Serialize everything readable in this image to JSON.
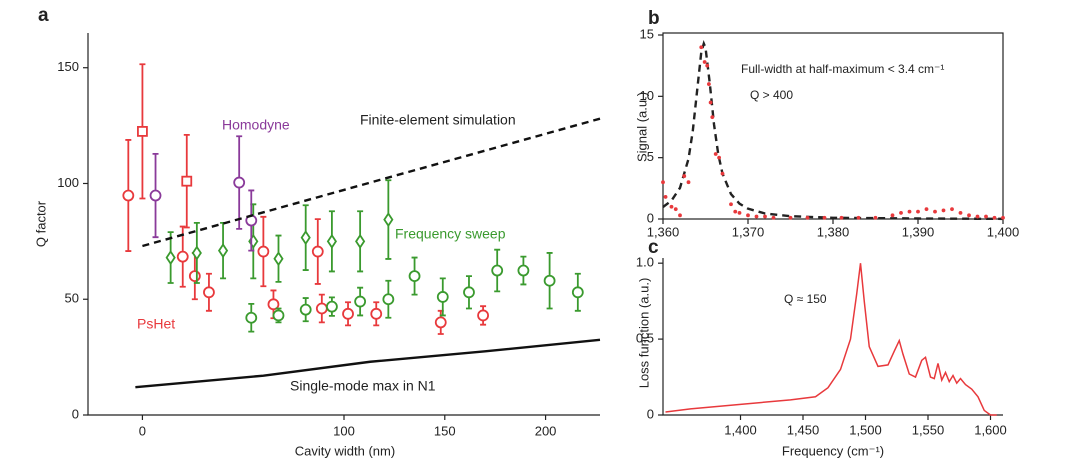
{
  "chart_data": [
    {
      "type": "scatter",
      "panel": "a",
      "ylabel": "Q factor",
      "xlabel": "Cavity width (nm)",
      "xlim": [
        -27,
        227
      ],
      "ylim": [
        0,
        165
      ],
      "xticks": [
        0,
        100,
        150,
        200
      ],
      "yticks": [
        0,
        50,
        100,
        150
      ],
      "series": [
        {
          "name": "PsHet",
          "color": "#e8393c",
          "x": [
            -7,
            0,
            20,
            22,
            26,
            33,
            60,
            65,
            87,
            89,
            102,
            116,
            148,
            169
          ],
          "values": [
            94.8,
            122.5,
            68.4,
            101,
            60,
            53,
            70.6,
            47.8,
            70.6,
            46,
            43.7,
            43.7,
            40,
            43
          ],
          "errors": [
            24,
            29,
            13,
            20,
            10,
            8,
            15,
            6,
            14,
            6,
            5,
            5,
            5,
            4
          ],
          "markers": [
            "circle",
            "square",
            "circle",
            "square",
            "circle",
            "circle",
            "circle",
            "circle",
            "circle",
            "circle",
            "circle",
            "circle",
            "circle",
            "circle"
          ]
        },
        {
          "name": "Frequency sweep",
          "color": "#3a9a2e",
          "x": [
            14,
            27,
            40,
            55,
            67.5,
            81,
            94,
            108,
            122,
            54,
            67.5,
            81,
            94,
            108,
            122,
            135,
            149,
            162,
            176,
            189,
            202,
            216
          ],
          "values": [
            68,
            70,
            71,
            75,
            67.5,
            76.6,
            75,
            75,
            84.4,
            42,
            43,
            45.5,
            46.8,
            49,
            50,
            60,
            51,
            53,
            62.4,
            62.4,
            58,
            53
          ],
          "errors": [
            11,
            13,
            12,
            16,
            10,
            14,
            13,
            13,
            17,
            6,
            3,
            5,
            4,
            6,
            8,
            8,
            8,
            7,
            9,
            6,
            12,
            8
          ],
          "markers": [
            "diamond",
            "diamond",
            "diamond",
            "diamond",
            "diamond",
            "diamond",
            "diamond",
            "diamond",
            "diamond",
            "circle",
            "circle",
            "circle",
            "circle",
            "circle",
            "circle",
            "circle",
            "circle",
            "circle",
            "circle",
            "circle",
            "circle",
            "circle"
          ]
        },
        {
          "name": "Homodyne",
          "color": "#8a3a9a",
          "x": [
            6.5,
            48,
            54
          ],
          "values": [
            94.8,
            100.4,
            84
          ],
          "errors": [
            18,
            20,
            13
          ],
          "markers": [
            "circle",
            "circle",
            "circle"
          ]
        },
        {
          "name": "Finite-element simulation",
          "kind": "line",
          "dash": true,
          "color": "#111",
          "x": [
            0,
            227
          ],
          "values": [
            73,
            128
          ]
        },
        {
          "name": "Single-mode max in N1",
          "kind": "line",
          "color": "#111",
          "x": [
            -3.5,
            60,
            113,
            170,
            227
          ],
          "values": [
            12,
            17,
            23,
            27.5,
            32.5
          ]
        }
      ]
    },
    {
      "type": "line",
      "panel": "b",
      "ylabel": "Signal (a.u.)",
      "xlim": [
        1360,
        1400
      ],
      "ylim": [
        0,
        15
      ],
      "xticks": [
        {
          "value": 1360,
          "label": "1,360"
        },
        {
          "value": 1370,
          "label": "1,370"
        },
        {
          "value": 1380,
          "label": "1,380"
        },
        {
          "value": 1390,
          "label": "1,390"
        },
        {
          "value": 1400,
          "label": "1,400"
        }
      ],
      "yticks": [
        0,
        5,
        10,
        15
      ],
      "annotations": [
        "Full-width at half-maximum < 3.4 cm⁻¹",
        "Q > 400"
      ],
      "series": [
        {
          "kind": "line",
          "dash": true,
          "color": "#222",
          "x": [
            1360,
            1361,
            1362,
            1363,
            1363.5,
            1364,
            1364.5,
            1364.8,
            1365,
            1365.5,
            1366,
            1366.5,
            1367,
            1368,
            1369,
            1370,
            1372,
            1375,
            1380,
            1390,
            1400
          ],
          "values": [
            0.98,
            1.5,
            2.54,
            4.9,
            7.15,
            10.37,
            13.58,
            14.3,
            13.97,
            11.09,
            7.72,
            5.28,
            3.7,
            2.03,
            1.25,
            0.84,
            0.45,
            0.23,
            0.1,
            0.04,
            0.01
          ]
        },
        {
          "kind": "points",
          "color": "#e8393c",
          "x": [
            1360,
            1360.3,
            1361,
            1361.5,
            1362,
            1362.5,
            1363,
            1364.5,
            1364.9,
            1365.2,
            1365.4,
            1365.6,
            1365.8,
            1366.2,
            1366.6,
            1367,
            1368,
            1368.5,
            1369,
            1370,
            1371,
            1372,
            1373,
            1375,
            1377,
            1379,
            1381,
            1383,
            1385,
            1387,
            1388,
            1389,
            1390,
            1391,
            1392,
            1393,
            1394,
            1395,
            1396,
            1397,
            1398,
            1399,
            1400
          ],
          "values": [
            3,
            1.8,
            1,
            0.8,
            0.3,
            3.5,
            3,
            14,
            12.8,
            12.5,
            11,
            9.5,
            8.3,
            5.3,
            5,
            3.7,
            1.2,
            0.6,
            0.5,
            0.3,
            0.2,
            0.2,
            0.1,
            0.1,
            0.1,
            0.1,
            0.1,
            0.1,
            0.1,
            0.3,
            0.5,
            0.6,
            0.6,
            0.8,
            0.6,
            0.7,
            0.8,
            0.5,
            0.3,
            0.2,
            0.2,
            0.1,
            0.1
          ]
        }
      ]
    },
    {
      "type": "line",
      "panel": "c",
      "ylabel": "Loss function (a.u.)",
      "xlabel": "Frequency (cm⁻¹)",
      "xlim": [
        1338,
        1610
      ],
      "ylim": [
        0,
        1.1
      ],
      "xticks": [
        {
          "value": 1400,
          "label": "1,400"
        },
        {
          "value": 1450,
          "label": "1,450"
        },
        {
          "value": 1500,
          "label": "1,500"
        },
        {
          "value": 1550,
          "label": "1,550"
        },
        {
          "value": 1600,
          "label": "1,600"
        }
      ],
      "yticks": [
        0,
        0.5,
        {
          "value": 1,
          "label": "1.0"
        }
      ],
      "annotations": [
        "Q ≈ 150"
      ],
      "series": [
        {
          "kind": "line",
          "color": "#e8393c",
          "x": [
            1340,
            1360,
            1400,
            1440,
            1460,
            1470,
            1480,
            1488,
            1493,
            1496,
            1499,
            1503,
            1510,
            1518,
            1523,
            1527,
            1530,
            1535,
            1540,
            1545,
            1548,
            1552,
            1555,
            1558,
            1561,
            1564,
            1567,
            1570,
            1573,
            1576,
            1580,
            1585,
            1590,
            1595,
            1600,
            1605
          ],
          "values": [
            0.02,
            0.04,
            0.07,
            0.1,
            0.12,
            0.18,
            0.3,
            0.5,
            0.8,
            1,
            0.75,
            0.45,
            0.32,
            0.33,
            0.42,
            0.49,
            0.4,
            0.27,
            0.25,
            0.36,
            0.38,
            0.25,
            0.24,
            0.34,
            0.23,
            0.28,
            0.22,
            0.26,
            0.21,
            0.24,
            0.2,
            0.17,
            0.12,
            0.03,
            0,
            0
          ]
        }
      ]
    }
  ]
}
